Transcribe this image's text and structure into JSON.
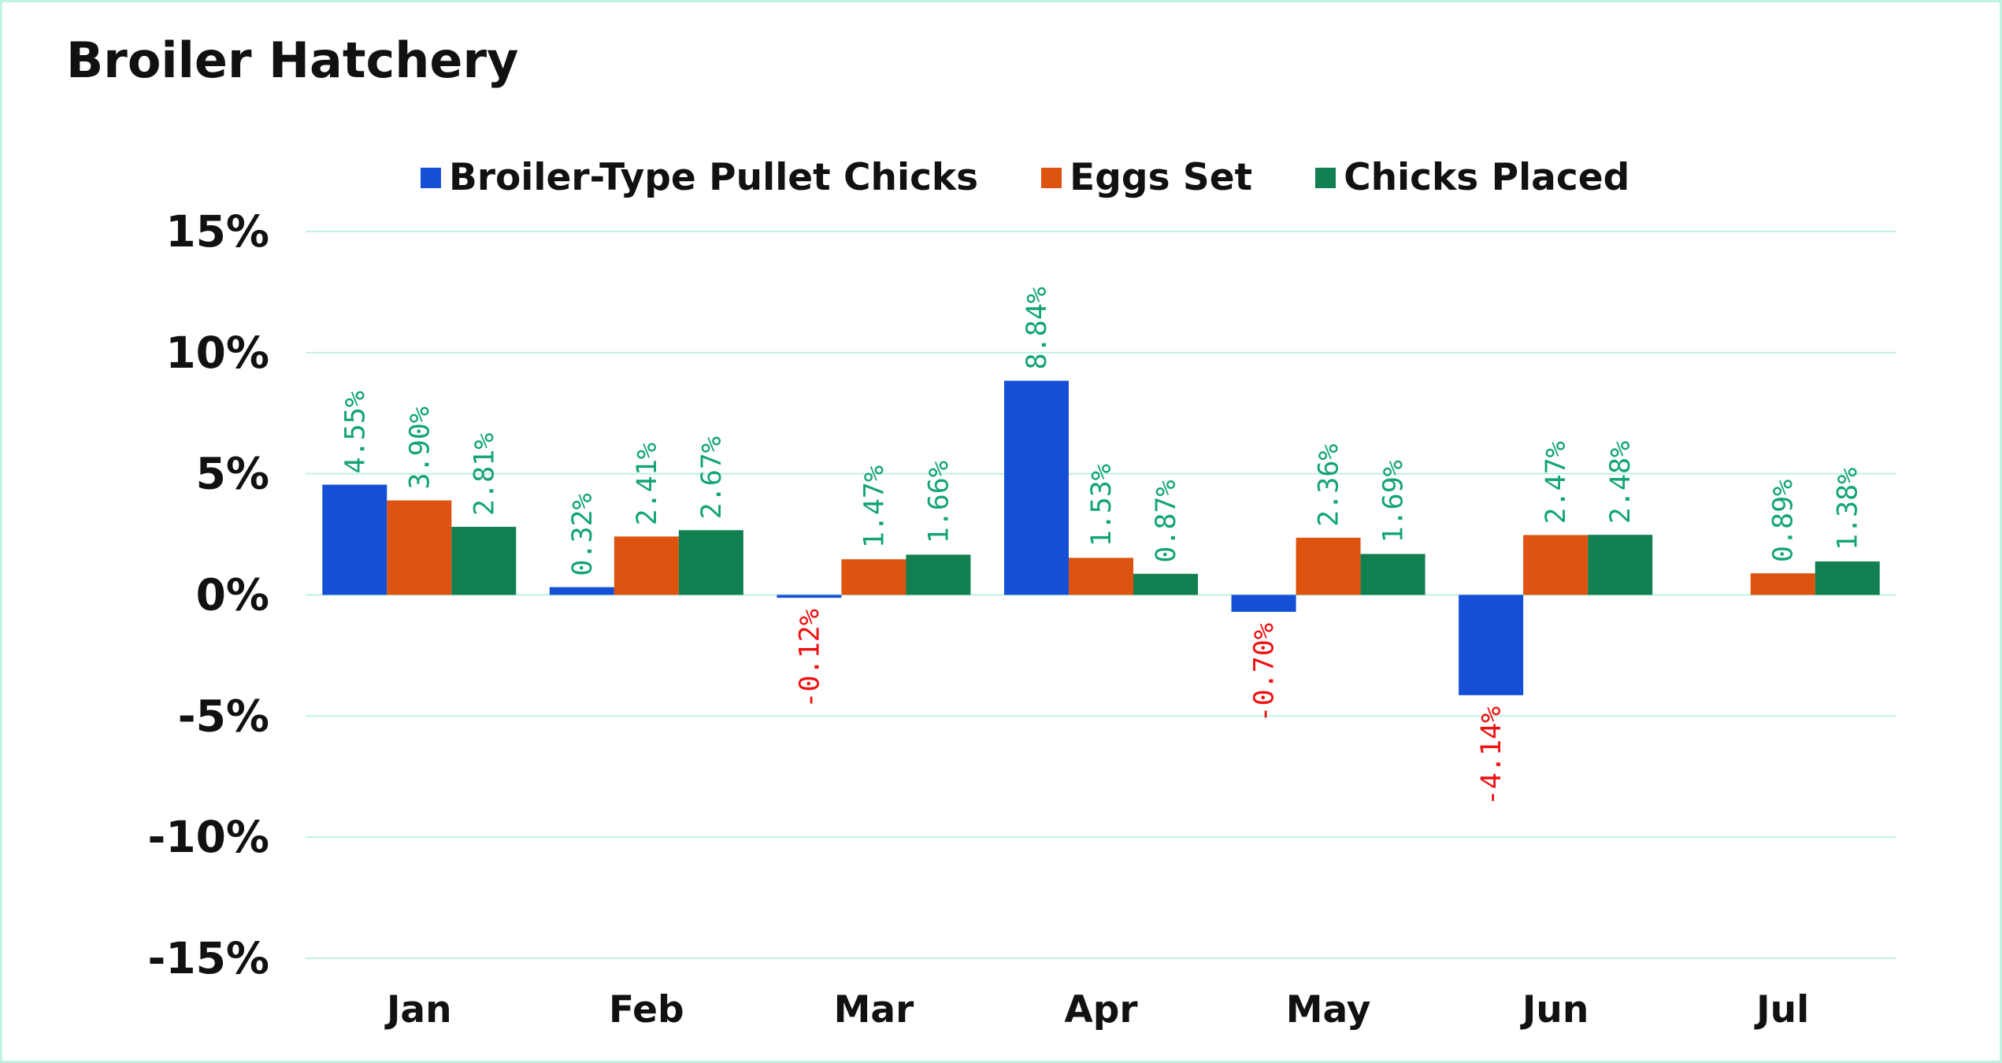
{
  "colors": {
    "series": [
      "#144fd6",
      "#dd530f",
      "#117f50"
    ],
    "grid": "#bff2e2",
    "label_positive": "#13a474",
    "label_negative": "#ee1111"
  },
  "chart_data": {
    "type": "bar",
    "title": "Broiler Hatchery",
    "xlabel": "",
    "ylabel": "",
    "categories": [
      "Jan",
      "Feb",
      "Mar",
      "Apr",
      "May",
      "Jun",
      "Jul"
    ],
    "series": [
      {
        "name": "Broiler-Type Pullet Chicks",
        "values": [
          4.55,
          0.32,
          -0.12,
          8.84,
          -0.7,
          -4.14,
          null
        ],
        "labels": [
          "4.55%",
          "0.32%",
          "-0.12%",
          "8.84%",
          "-0.70%",
          "-4.14%",
          ""
        ]
      },
      {
        "name": "Eggs Set",
        "values": [
          3.9,
          2.41,
          1.47,
          1.53,
          2.36,
          2.47,
          0.89
        ],
        "labels": [
          "3.90%",
          "2.41%",
          "1.47%",
          "1.53%",
          "2.36%",
          "2.47%",
          "0.89%"
        ]
      },
      {
        "name": "Chicks Placed",
        "values": [
          2.81,
          2.67,
          1.66,
          0.87,
          1.69,
          2.48,
          1.38
        ],
        "labels": [
          "2.81%",
          "2.67%",
          "1.66%",
          "0.87%",
          "1.69%",
          "2.48%",
          "1.38%"
        ]
      }
    ],
    "ylim": [
      -15,
      15
    ],
    "yticks": [
      15,
      10,
      5,
      0,
      -5,
      -10,
      -15
    ],
    "ytick_labels": [
      "15%",
      "10%",
      "5%",
      "0%",
      "-5%",
      "-10%",
      "-15%"
    ],
    "grid": true,
    "legend_position": "top-center"
  }
}
